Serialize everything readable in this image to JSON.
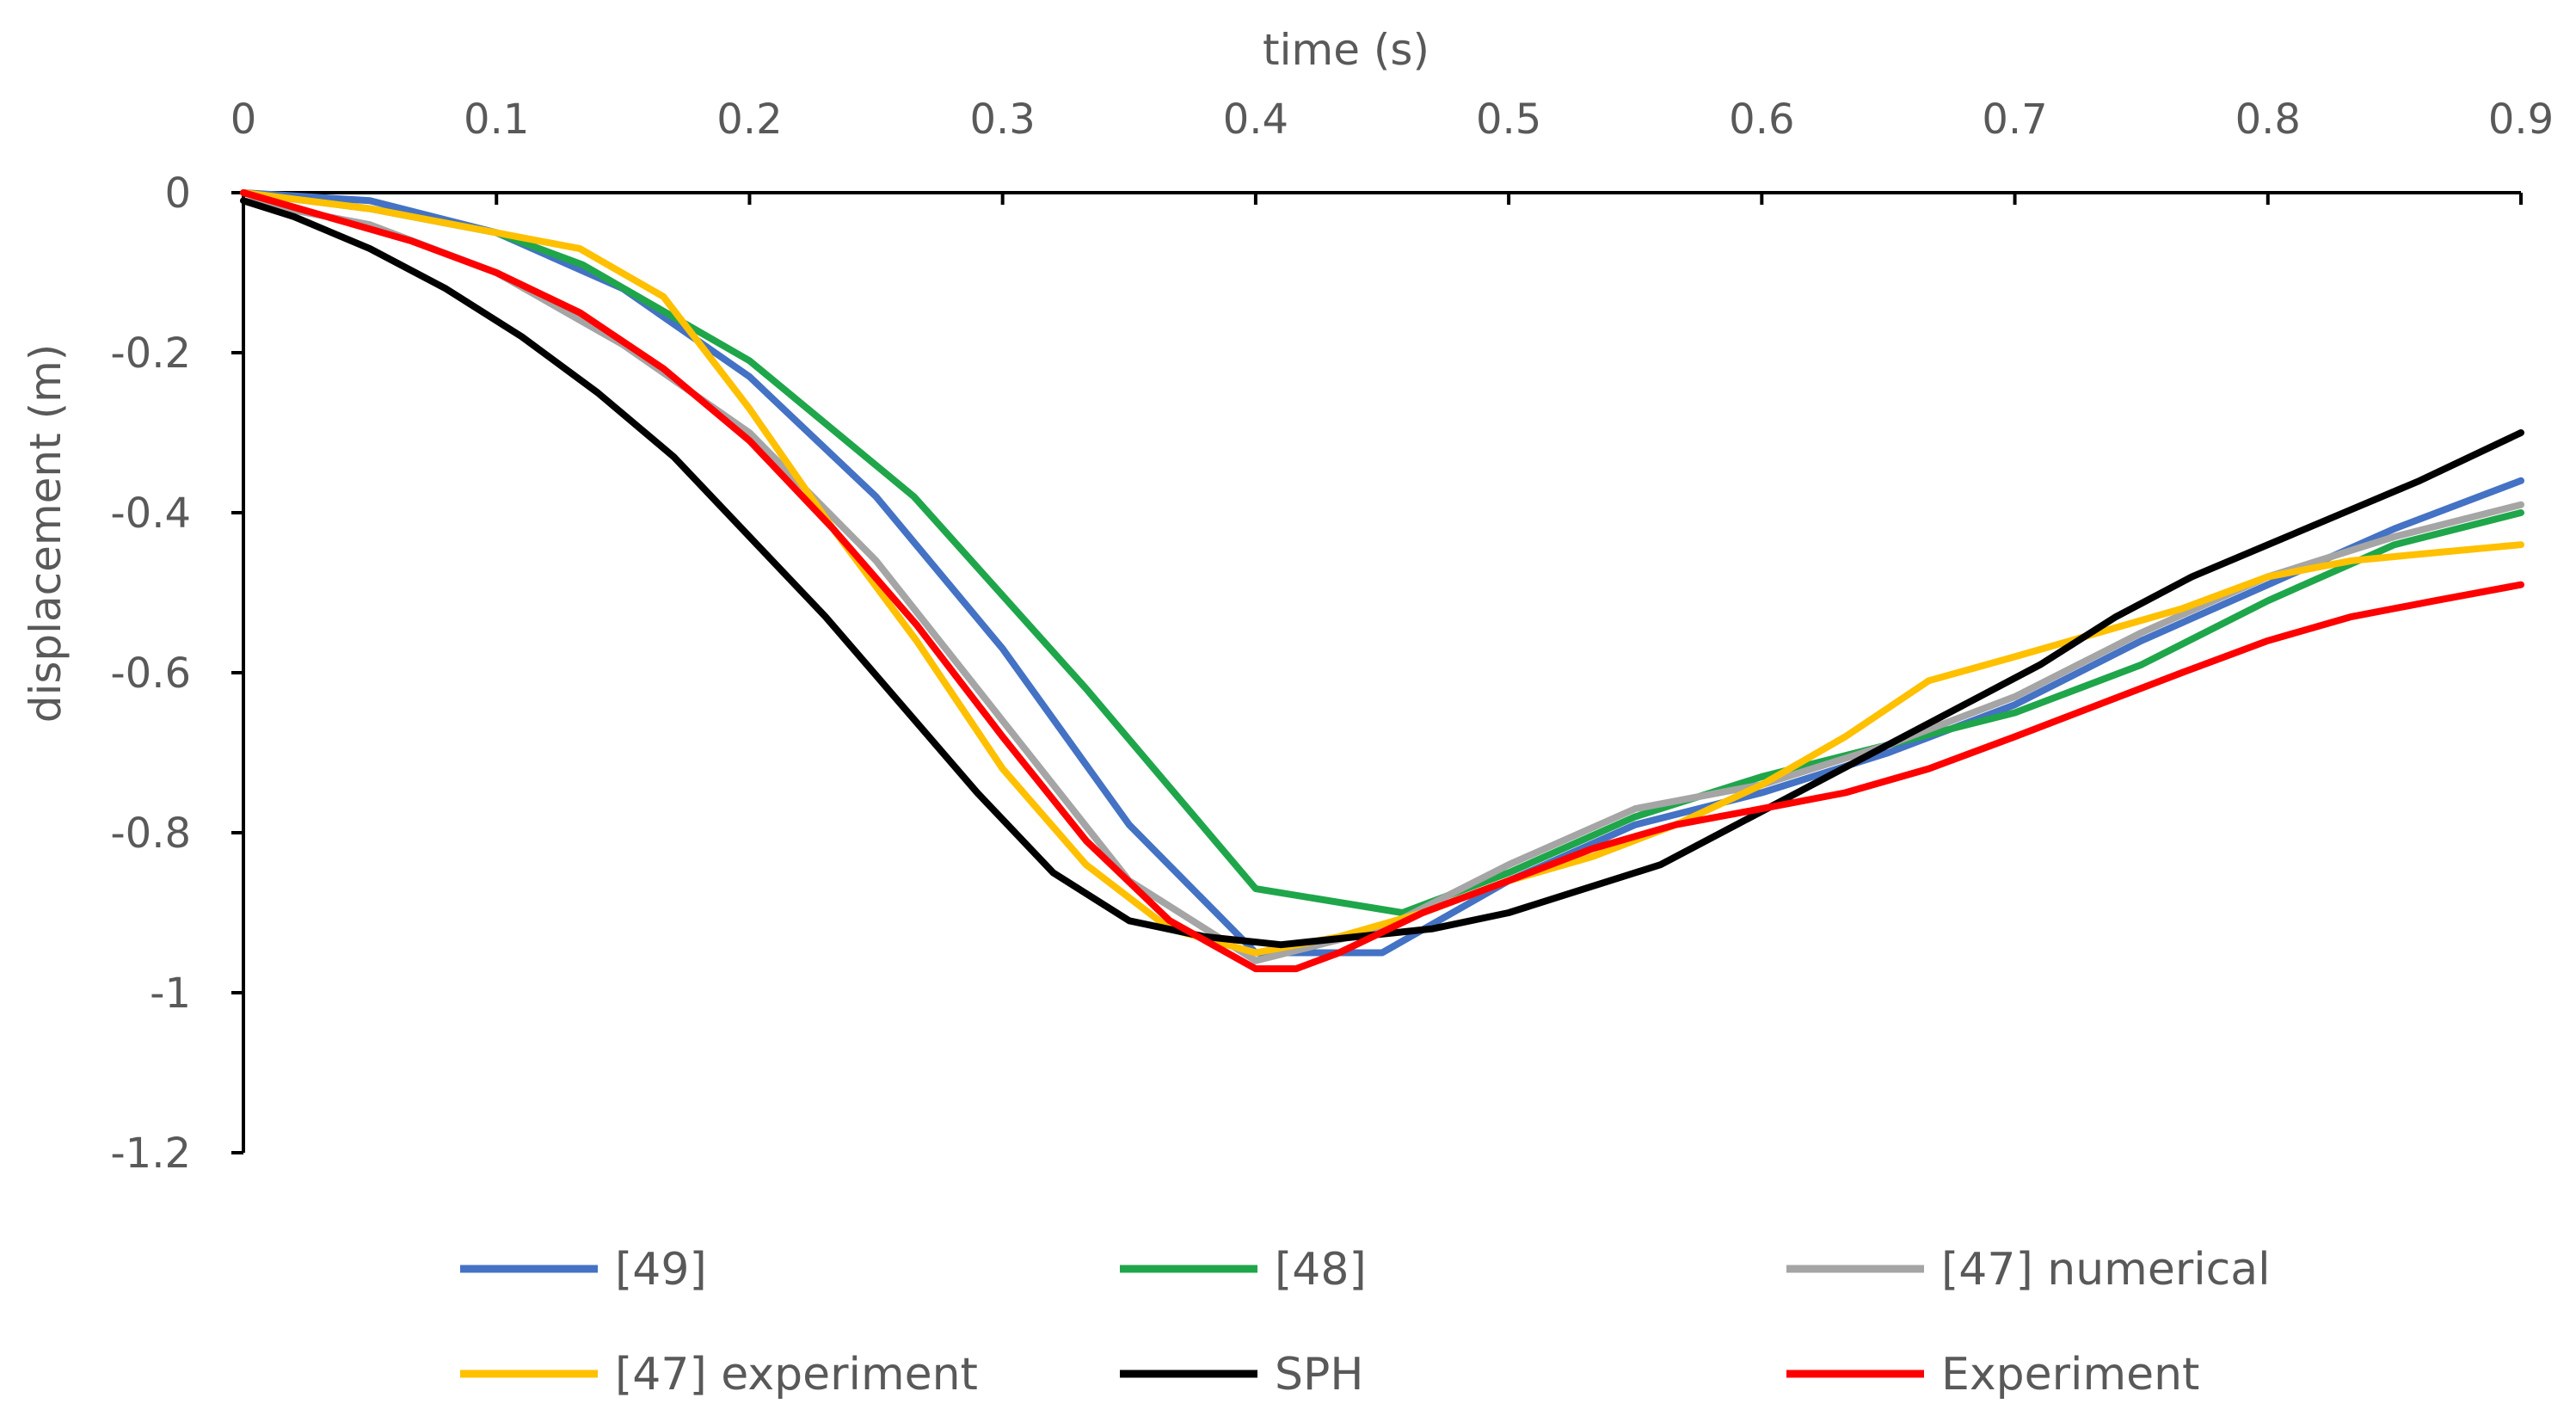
{
  "chart_data": {
    "type": "line",
    "title": "",
    "xlabel": "time (s)",
    "ylabel": "displacement (m)",
    "xlim": [
      0,
      0.9
    ],
    "ylim": [
      -1.2,
      0
    ],
    "xticks": [
      0,
      0.1,
      0.2,
      0.3,
      0.4,
      0.5,
      0.6,
      0.7,
      0.8,
      0.9
    ],
    "xtick_labels": [
      "0",
      "0.1",
      "0.2",
      "0.3",
      "0.4",
      "0.5",
      "0.6",
      "0.7",
      "0.8",
      "0.9"
    ],
    "yticks": [
      0,
      -0.2,
      -0.4,
      -0.6,
      -0.8,
      -1,
      -1.2
    ],
    "ytick_labels": [
      "0",
      "-0.2",
      "-0.4",
      "-0.6",
      "-0.8",
      "-1",
      "-1.2"
    ],
    "x_axis_position": "top",
    "grid": false,
    "legend_position": "bottom",
    "series": [
      {
        "name": "[49]",
        "color": "#4472C4",
        "x": [
          0,
          0.05,
          0.1,
          0.15,
          0.2,
          0.25,
          0.3,
          0.35,
          0.4,
          0.45,
          0.5,
          0.55,
          0.6,
          0.65,
          0.7,
          0.75,
          0.8,
          0.85,
          0.9
        ],
        "y": [
          0,
          -0.01,
          -0.05,
          -0.12,
          -0.23,
          -0.38,
          -0.57,
          -0.79,
          -0.95,
          -0.95,
          -0.86,
          -0.79,
          -0.75,
          -0.7,
          -0.64,
          -0.56,
          -0.49,
          -0.42,
          -0.36
        ]
      },
      {
        "name": "[48]",
        "color": "#1FA64A",
        "x": [
          0,
          0.05,
          0.1,
          0.134,
          0.2,
          0.265,
          0.333,
          0.4,
          0.458,
          0.5,
          0.55,
          0.6,
          0.65,
          0.7,
          0.75,
          0.8,
          0.85,
          0.9
        ],
        "y": [
          0,
          -0.02,
          -0.05,
          -0.09,
          -0.21,
          -0.38,
          -0.62,
          -0.87,
          -0.9,
          -0.85,
          -0.78,
          -0.73,
          -0.69,
          -0.65,
          -0.59,
          -0.51,
          -0.44,
          -0.4
        ]
      },
      {
        "name": "[47] numerical",
        "color": "#A5A5A5",
        "x": [
          0,
          0.05,
          0.1,
          0.15,
          0.2,
          0.25,
          0.3,
          0.35,
          0.4,
          0.45,
          0.5,
          0.55,
          0.6,
          0.65,
          0.7,
          0.75,
          0.8,
          0.85,
          0.9
        ],
        "y": [
          -0.01,
          -0.04,
          -0.1,
          -0.19,
          -0.3,
          -0.46,
          -0.66,
          -0.86,
          -0.96,
          -0.92,
          -0.84,
          -0.77,
          -0.74,
          -0.69,
          -0.63,
          -0.55,
          -0.48,
          -0.43,
          -0.39
        ]
      },
      {
        "name": "[47] experiment",
        "color": "#FFC000",
        "x": [
          0,
          0.05,
          0.1,
          0.133,
          0.166,
          0.2,
          0.233,
          0.266,
          0.3,
          0.333,
          0.366,
          0.4,
          0.433,
          0.466,
          0.5,
          0.533,
          0.566,
          0.6,
          0.633,
          0.666,
          0.7,
          0.733,
          0.766,
          0.8,
          0.833,
          0.866,
          0.9
        ],
        "y": [
          0,
          -0.02,
          -0.05,
          -0.07,
          -0.13,
          -0.27,
          -0.42,
          -0.56,
          -0.72,
          -0.84,
          -0.92,
          -0.95,
          -0.93,
          -0.9,
          -0.86,
          -0.83,
          -0.79,
          -0.74,
          -0.68,
          -0.61,
          -0.58,
          -0.55,
          -0.52,
          -0.48,
          -0.46,
          -0.45,
          -0.44
        ]
      },
      {
        "name": "SPH",
        "color": "#000000",
        "x": [
          0,
          0.02,
          0.05,
          0.08,
          0.11,
          0.14,
          0.17,
          0.2,
          0.23,
          0.26,
          0.29,
          0.32,
          0.35,
          0.38,
          0.41,
          0.44,
          0.47,
          0.5,
          0.53,
          0.56,
          0.59,
          0.62,
          0.65,
          0.68,
          0.71,
          0.74,
          0.77,
          0.8,
          0.83,
          0.86,
          0.9
        ],
        "y": [
          -0.01,
          -0.03,
          -0.07,
          -0.12,
          -0.18,
          -0.25,
          -0.33,
          -0.43,
          -0.53,
          -0.64,
          -0.75,
          -0.85,
          -0.91,
          -0.93,
          -0.94,
          -0.93,
          -0.92,
          -0.9,
          -0.87,
          -0.84,
          -0.79,
          -0.74,
          -0.69,
          -0.64,
          -0.59,
          -0.53,
          -0.48,
          -0.44,
          -0.4,
          -0.36,
          -0.3
        ]
      },
      {
        "name": "Experiment",
        "color": "#FF0000",
        "x": [
          0,
          0.033,
          0.066,
          0.1,
          0.133,
          0.166,
          0.2,
          0.233,
          0.266,
          0.3,
          0.333,
          0.366,
          0.4,
          0.416,
          0.433,
          0.466,
          0.5,
          0.533,
          0.566,
          0.6,
          0.633,
          0.666,
          0.7,
          0.733,
          0.766,
          0.8,
          0.833,
          0.866,
          0.9
        ],
        "y": [
          0,
          -0.03,
          -0.06,
          -0.1,
          -0.15,
          -0.22,
          -0.31,
          -0.42,
          -0.54,
          -0.68,
          -0.81,
          -0.91,
          -0.97,
          -0.97,
          -0.95,
          -0.9,
          -0.86,
          -0.82,
          -0.79,
          -0.77,
          -0.75,
          -0.72,
          -0.68,
          -0.64,
          -0.6,
          -0.56,
          -0.53,
          -0.51,
          -0.49
        ]
      }
    ]
  }
}
